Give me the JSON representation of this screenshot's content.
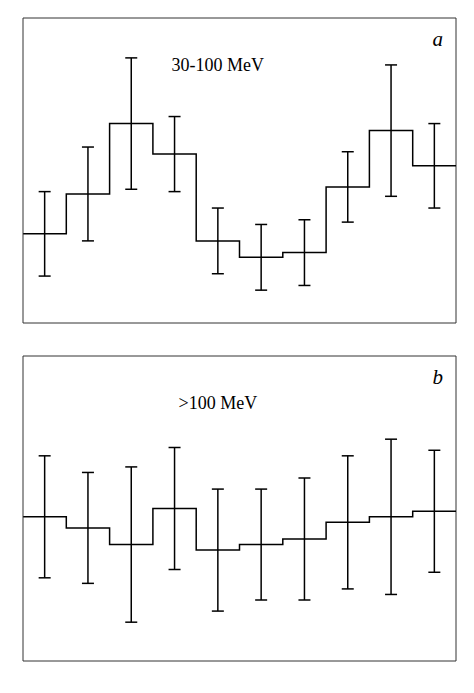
{
  "chart_data": [
    {
      "type": "histogram",
      "annotations": [
        "30-100 MeV",
        "a"
      ],
      "bins": [
        0.0,
        0.1,
        0.2,
        0.3,
        0.4,
        0.5,
        0.6,
        0.7,
        0.8,
        0.9,
        1.0
      ],
      "values": [
        0.38,
        0.55,
        0.85,
        0.72,
        0.35,
        0.28,
        0.3,
        0.58,
        0.82,
        0.67
      ],
      "errors": [
        0.18,
        0.2,
        0.28,
        0.16,
        0.14,
        0.14,
        0.14,
        0.15,
        0.28,
        0.18
      ],
      "xlim": [
        0.0,
        1.0
      ],
      "ylim": [
        0.0,
        1.3
      ],
      "xticks": [
        0,
        0.25,
        0.5,
        0.75,
        1
      ],
      "yticks": [
        0,
        0.5,
        1
      ],
      "color": "#000000",
      "grid": false,
      "tick_labels": false
    },
    {
      "type": "histogram",
      "annotations": [
        ">100 MeV",
        "b"
      ],
      "bins": [
        0.0,
        0.1,
        0.2,
        0.3,
        0.4,
        0.5,
        0.6,
        0.7,
        0.8,
        0.9,
        1.0
      ],
      "values": [
        0.52,
        0.48,
        0.42,
        0.55,
        0.4,
        0.42,
        0.44,
        0.5,
        0.52,
        0.54
      ],
      "errors": [
        0.22,
        0.2,
        0.28,
        0.22,
        0.22,
        0.2,
        0.22,
        0.24,
        0.28,
        0.22
      ],
      "xlim": [
        0.0,
        1.0
      ],
      "ylim": [
        0.0,
        1.1
      ],
      "xticks": [
        0,
        0.25,
        0.5,
        0.75,
        1
      ],
      "yticks": [
        0,
        0.5,
        1
      ],
      "color": "#000000",
      "grid": false,
      "tick_labels": false
    }
  ]
}
